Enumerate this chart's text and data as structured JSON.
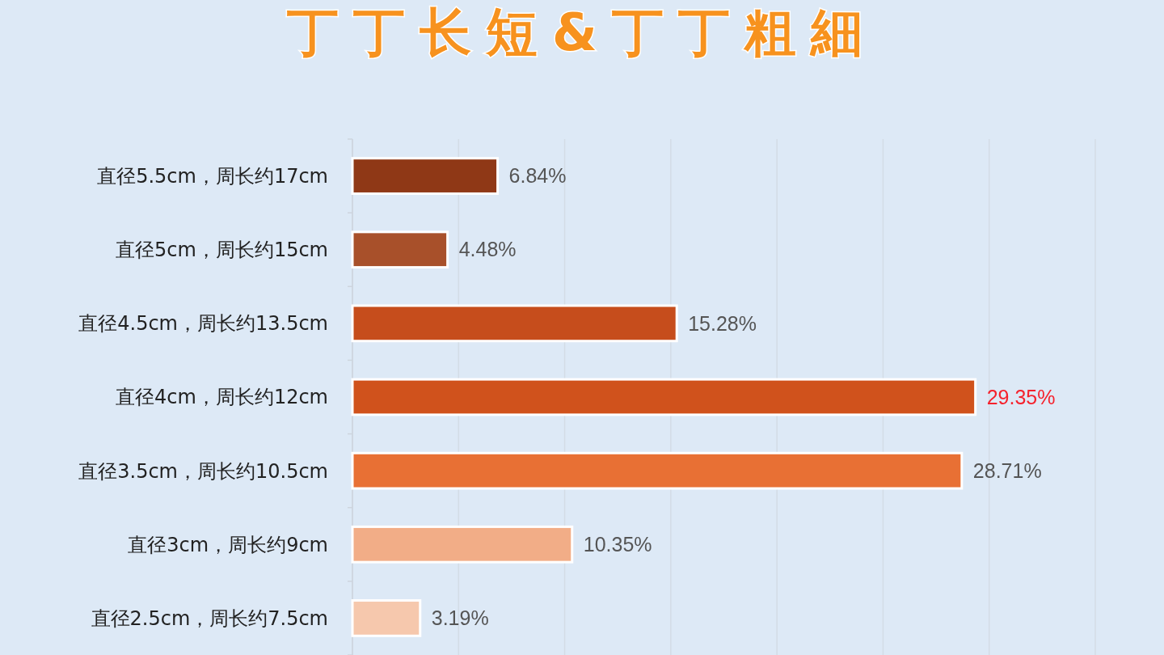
{
  "chart_data": {
    "type": "bar",
    "orientation": "horizontal",
    "title": "丁丁长短&丁丁粗細",
    "categories": [
      "直径5.5cm，周长约17cm",
      "直径5cm，周长约15cm",
      "直径4.5cm，周长约13.5cm",
      "直径4cm，周长约12cm",
      "直径3.5cm，周长约10.5cm",
      "直径3cm，周长约9cm",
      "直径2.5cm，周长约7.5cm"
    ],
    "values": [
      6.84,
      4.48,
      15.28,
      29.35,
      28.71,
      10.35,
      3.19
    ],
    "colors": [
      "#8f3816",
      "#a8502a",
      "#c64d1c",
      "#d0521c",
      "#e87034",
      "#f2ad87",
      "#f6c8ad"
    ],
    "value_labels": [
      "6.84%",
      "4.48%",
      "15.28%",
      "29.35%",
      "28.71%",
      "10.35%",
      "3.19%"
    ],
    "xlim": [
      0,
      35
    ],
    "xticks": [
      {
        "value": 0,
        "label": null
      },
      {
        "value": 5,
        "label": null
      },
      {
        "value": 10,
        "label": null
      },
      {
        "value": 15,
        "label": null
      },
      {
        "value": 20,
        "label": null
      },
      {
        "value": 25,
        "label": null
      },
      {
        "value": 30,
        "label": null
      },
      {
        "value": 35,
        "label": null
      }
    ],
    "grid": "x",
    "tick_labels": "y"
  }
}
